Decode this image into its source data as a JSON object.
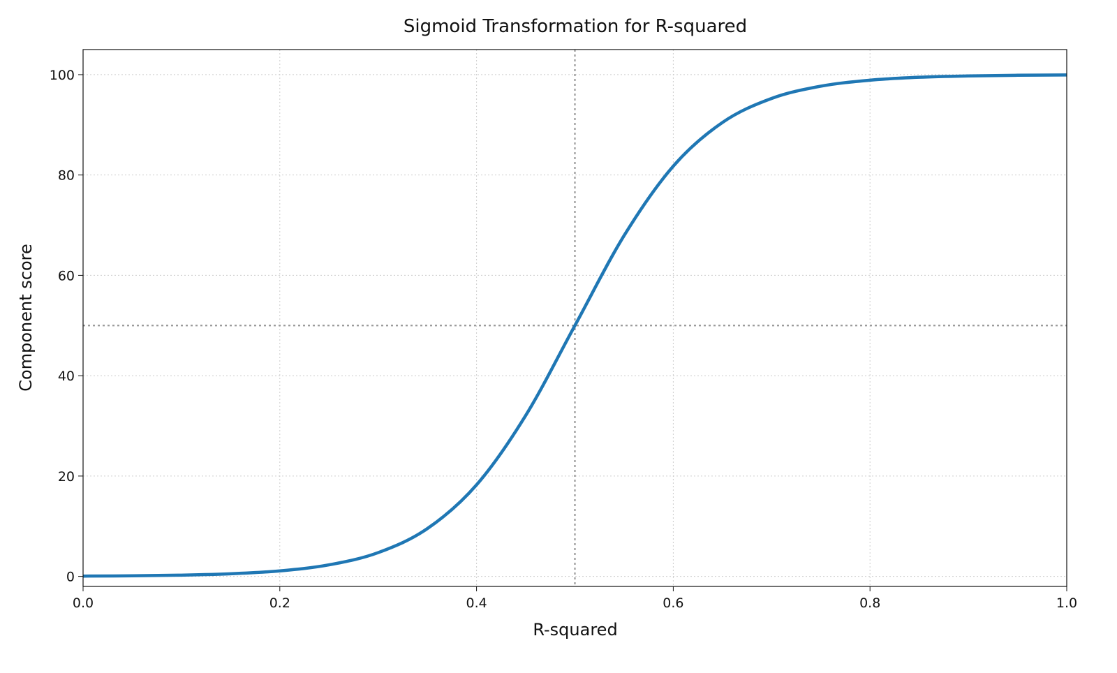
{
  "chart_data": {
    "type": "line",
    "title": "Sigmoid Transformation for R-squared",
    "xlabel": "R-squared",
    "ylabel": "Component score",
    "xlim": [
      0.0,
      1.0
    ],
    "ylim": [
      -2,
      105
    ],
    "xticks": [
      "0.0",
      "0.2",
      "0.4",
      "0.6",
      "0.8",
      "1.0"
    ],
    "yticks": [
      "0",
      "20",
      "40",
      "60",
      "80",
      "100"
    ],
    "grid": true,
    "reference_lines": {
      "x": 0.5,
      "y": 50
    },
    "colors": {
      "line": "#1f77b4",
      "grid": "#cccccc",
      "reference": "#999999"
    },
    "series": [
      {
        "x": [
          0.0,
          0.05,
          0.1,
          0.15,
          0.2,
          0.25,
          0.3,
          0.35,
          0.4,
          0.45,
          0.5,
          0.55,
          0.6,
          0.65,
          0.7,
          0.75,
          0.8,
          0.85,
          0.9,
          0.95,
          1.0
        ],
        "y": [
          0.06,
          0.12,
          0.25,
          0.52,
          1.1,
          2.3,
          4.74,
          9.53,
          18.24,
          32.08,
          50.0,
          67.92,
          81.76,
          90.47,
          95.26,
          97.7,
          98.9,
          99.48,
          99.75,
          99.88,
          99.94
        ]
      }
    ]
  }
}
